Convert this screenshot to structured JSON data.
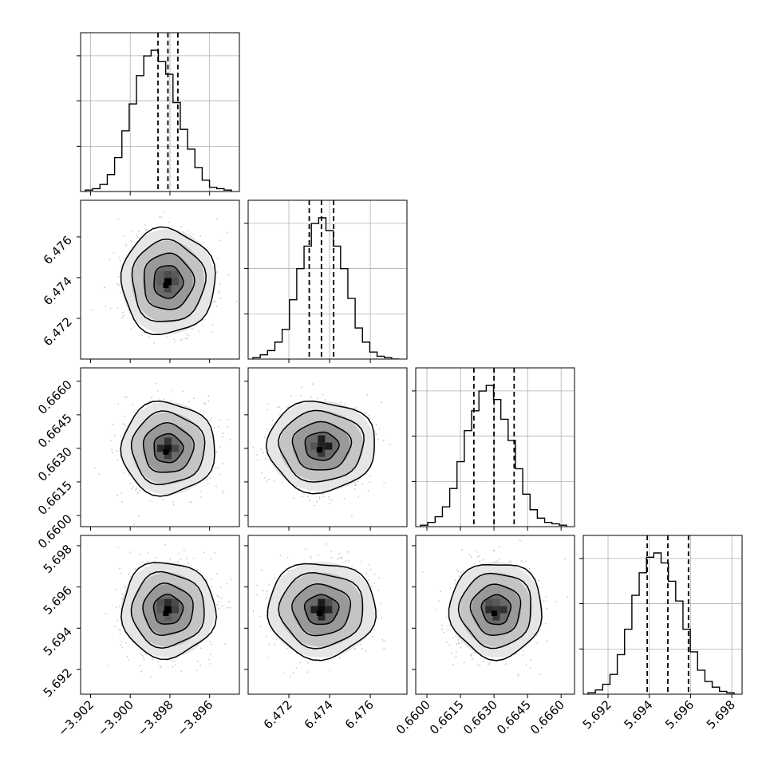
{
  "chart_data": {
    "type": "corner",
    "parameters": [
      {
        "index": 0,
        "range": [
          -3.9025,
          -3.8945
        ],
        "ticks": [
          -3.902,
          -3.9,
          -3.898,
          -3.896
        ],
        "tick_labels": [
          "−3.902",
          "−3.900",
          "−3.898",
          "−3.896"
        ]
      },
      {
        "index": 1,
        "range": [
          6.47,
          6.4778
        ],
        "ticks": [
          6.472,
          6.474,
          6.476
        ],
        "tick_labels": [
          "6.472",
          "6.474",
          "6.476"
        ]
      },
      {
        "index": 2,
        "range": [
          0.6595,
          0.6666
        ],
        "ticks": [
          0.66,
          0.6615,
          0.663,
          0.6645,
          0.666
        ],
        "tick_labels": [
          "0.6600",
          "0.6615",
          "0.6630",
          "0.6645",
          "0.6660"
        ]
      },
      {
        "index": 3,
        "range": [
          5.6908,
          5.6985
        ],
        "ticks": [
          5.692,
          5.694,
          5.696,
          5.698
        ],
        "tick_labels": [
          "5.692",
          "5.694",
          "5.696",
          "5.698"
        ]
      }
    ],
    "marginal_histograms": [
      {
        "param": 0,
        "bins": 20,
        "counts": [
          0.01,
          0.02,
          0.05,
          0.12,
          0.24,
          0.43,
          0.62,
          0.82,
          0.96,
          1.0,
          0.92,
          0.83,
          0.63,
          0.44,
          0.3,
          0.17,
          0.08,
          0.03,
          0.02,
          0.01
        ],
        "quantiles": [
          -3.8986,
          -3.8981,
          -3.8976
        ]
      },
      {
        "param": 1,
        "bins": 20,
        "counts": [
          0.01,
          0.03,
          0.06,
          0.12,
          0.21,
          0.42,
          0.64,
          0.8,
          0.96,
          1.0,
          0.91,
          0.8,
          0.64,
          0.43,
          0.22,
          0.12,
          0.05,
          0.02,
          0.01,
          0.0
        ],
        "quantiles": [
          6.473,
          6.4736,
          6.4742
        ]
      },
      {
        "param": 2,
        "bins": 20,
        "counts": [
          0.01,
          0.03,
          0.07,
          0.14,
          0.27,
          0.46,
          0.68,
          0.82,
          0.96,
          1.0,
          0.9,
          0.76,
          0.61,
          0.41,
          0.23,
          0.12,
          0.06,
          0.03,
          0.02,
          0.01
        ],
        "quantiles": [
          0.6621,
          0.663,
          0.6639
        ]
      },
      {
        "param": 3,
        "bins": 20,
        "counts": [
          0.01,
          0.03,
          0.07,
          0.14,
          0.28,
          0.46,
          0.7,
          0.86,
          0.97,
          1.0,
          0.93,
          0.8,
          0.66,
          0.46,
          0.3,
          0.17,
          0.09,
          0.05,
          0.02,
          0.01
        ],
        "quantiles": [
          5.6939,
          5.6949,
          5.6959
        ]
      }
    ],
    "joint_distributions": [
      {
        "row": 1,
        "col": 0,
        "center": [
          -3.8981,
          6.4738
        ],
        "spread": [
          0.00105,
          0.00115
        ]
      },
      {
        "row": 2,
        "col": 0,
        "center": [
          -3.8981,
          0.663
        ],
        "spread": [
          0.00105,
          0.00092
        ]
      },
      {
        "row": 2,
        "col": 1,
        "center": [
          6.4736,
          0.6631
        ],
        "spread": [
          0.00118,
          0.0009
        ]
      },
      {
        "row": 3,
        "col": 0,
        "center": [
          -3.8981,
          5.6949
        ],
        "spread": [
          0.00105,
          0.00103
        ]
      },
      {
        "row": 3,
        "col": 1,
        "center": [
          6.4736,
          5.6949
        ],
        "spread": [
          0.00118,
          0.00103
        ]
      },
      {
        "row": 3,
        "col": 2,
        "center": [
          0.6631,
          5.6949
        ],
        "spread": [
          0.00092,
          0.00103
        ]
      }
    ],
    "contour_levels": [
      "1-sigma",
      "1.5-sigma",
      "2-sigma"
    ],
    "grid": true,
    "colors": {
      "points": "#c8c8c8",
      "contour": "#000000",
      "density_dark": "#000000",
      "density_light": "#f0f0f0"
    }
  }
}
